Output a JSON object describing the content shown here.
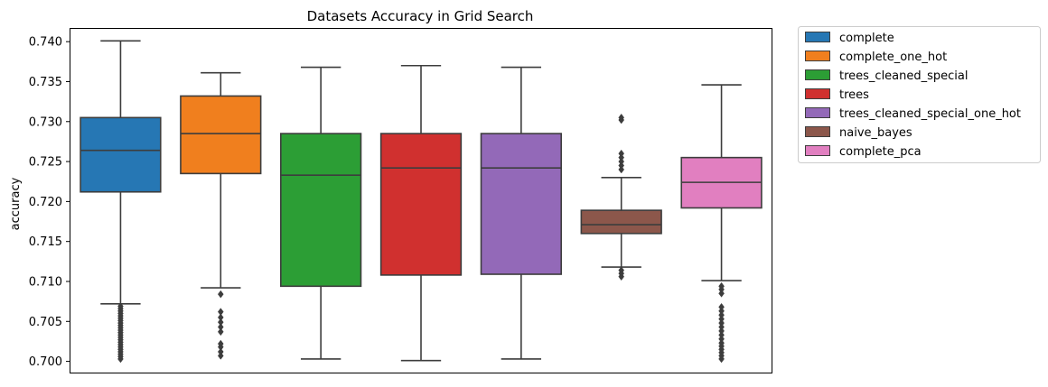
{
  "chart_data": {
    "type": "box",
    "title": "Datasets Accuracy in Grid Search",
    "xlabel": "",
    "ylabel": "accuracy",
    "ylim": [
      0.6986,
      0.7416
    ],
    "yticks": [
      "0.700",
      "0.705",
      "0.710",
      "0.715",
      "0.720",
      "0.725",
      "0.730",
      "0.735",
      "0.740"
    ],
    "grid": false,
    "legend_position": "outside-right-top",
    "series": [
      {
        "name": "complete",
        "color": "#2677b4",
        "q1": 0.7212,
        "median": 0.7264,
        "q3": 0.7305,
        "whisker_low": 0.7072,
        "whisker_high": 0.7401,
        "outliers": [
          0.7003,
          0.7006,
          0.7009,
          0.7012,
          0.7015,
          0.7018,
          0.7021,
          0.7024,
          0.7027,
          0.703,
          0.7033,
          0.7036,
          0.7039,
          0.7042,
          0.7045,
          0.7048,
          0.7051,
          0.7054,
          0.7057,
          0.706,
          0.7063,
          0.7066,
          0.7069
        ]
      },
      {
        "name": "complete_one_hot",
        "color": "#f07f1e",
        "q1": 0.7235,
        "median": 0.7285,
        "q3": 0.7332,
        "whisker_low": 0.7092,
        "whisker_high": 0.7361,
        "outliers": [
          0.7007,
          0.7012,
          0.7018,
          0.7022,
          0.7037,
          0.7043,
          0.7049,
          0.7055,
          0.7062,
          0.7084
        ]
      },
      {
        "name": "trees_cleaned_special",
        "color": "#2c9e35",
        "q1": 0.7094,
        "median": 0.7233,
        "q3": 0.7285,
        "whisker_low": 0.7003,
        "whisker_high": 0.7368,
        "outliers": []
      },
      {
        "name": "trees",
        "color": "#d0302f",
        "q1": 0.7108,
        "median": 0.7242,
        "q3": 0.7285,
        "whisker_low": 0.7001,
        "whisker_high": 0.737,
        "outliers": []
      },
      {
        "name": "trees_cleaned_special_one_hot",
        "color": "#9369b8",
        "q1": 0.7109,
        "median": 0.7242,
        "q3": 0.7285,
        "whisker_low": 0.7003,
        "whisker_high": 0.7368,
        "outliers": []
      },
      {
        "name": "naive_bayes",
        "color": "#8c574b",
        "q1": 0.716,
        "median": 0.7171,
        "q3": 0.7189,
        "whisker_low": 0.7118,
        "whisker_high": 0.723,
        "outliers": [
          0.7106,
          0.711,
          0.7114,
          0.724,
          0.7245,
          0.725,
          0.7255,
          0.726,
          0.7302,
          0.7305
        ]
      },
      {
        "name": "complete_pca",
        "color": "#e17fc0",
        "q1": 0.7192,
        "median": 0.7224,
        "q3": 0.7255,
        "whisker_low": 0.7101,
        "whisker_high": 0.7346,
        "outliers": [
          0.7003,
          0.7007,
          0.7011,
          0.7015,
          0.7019,
          0.7023,
          0.7028,
          0.7033,
          0.7038,
          0.7043,
          0.7048,
          0.7053,
          0.7058,
          0.7063,
          0.7068,
          0.7085,
          0.709,
          0.7094
        ]
      }
    ]
  }
}
